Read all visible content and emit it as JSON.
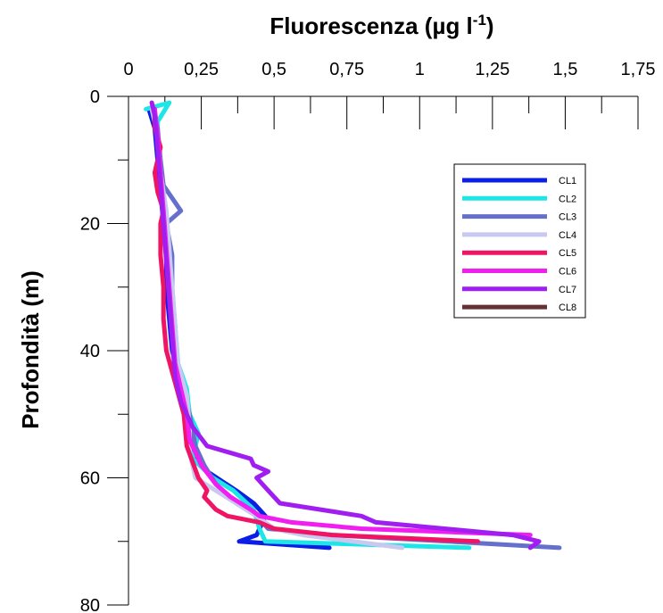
{
  "chart_data": {
    "type": "line",
    "title": "",
    "xlabel": "Fluorescenza (µg l",
    "xlabel_sup": "-1",
    "xlabel_suffix": ")",
    "ylabel": "Profondità (m)",
    "xlim": [
      0,
      1.75
    ],
    "ylim": [
      0,
      80
    ],
    "y_inverted": true,
    "x_axis_position": "top",
    "x_ticks": [
      "0",
      "0,25",
      "0,5",
      "0,75",
      "1",
      "1,25",
      "1,5",
      "1,75"
    ],
    "y_ticks": [
      "0",
      "20",
      "40",
      "60",
      "80"
    ],
    "grid": false,
    "legend_position": "top-right",
    "series": [
      {
        "name": "CL1",
        "color": "#0a1ee6",
        "points": [
          [
            0.07,
            2
          ],
          [
            0.09,
            5
          ],
          [
            0.1,
            10
          ],
          [
            0.11,
            15
          ],
          [
            0.12,
            20
          ],
          [
            0.13,
            25
          ],
          [
            0.13,
            30
          ],
          [
            0.14,
            35
          ],
          [
            0.15,
            40
          ],
          [
            0.18,
            45
          ],
          [
            0.2,
            48
          ],
          [
            0.2,
            50
          ],
          [
            0.21,
            53
          ],
          [
            0.22,
            56
          ],
          [
            0.27,
            59
          ],
          [
            0.37,
            62
          ],
          [
            0.43,
            64
          ],
          [
            0.47,
            66
          ],
          [
            0.45,
            68
          ],
          [
            0.44,
            69
          ],
          [
            0.38,
            70
          ],
          [
            0.69,
            71
          ]
        ]
      },
      {
        "name": "CL2",
        "color": "#1ee6e6",
        "points": [
          [
            0.06,
            2
          ],
          [
            0.14,
            1
          ],
          [
            0.1,
            4
          ],
          [
            0.1,
            8
          ],
          [
            0.11,
            12
          ],
          [
            0.12,
            18
          ],
          [
            0.13,
            24
          ],
          [
            0.15,
            30
          ],
          [
            0.16,
            36
          ],
          [
            0.17,
            42
          ],
          [
            0.2,
            46
          ],
          [
            0.21,
            50
          ],
          [
            0.24,
            53
          ],
          [
            0.22,
            57
          ],
          [
            0.29,
            60
          ],
          [
            0.36,
            62
          ],
          [
            0.43,
            65
          ],
          [
            0.45,
            68
          ],
          [
            0.47,
            70
          ],
          [
            1.17,
            71
          ]
        ]
      },
      {
        "name": "CL3",
        "color": "#6470cc",
        "points": [
          [
            0.08,
            2
          ],
          [
            0.1,
            5
          ],
          [
            0.11,
            10
          ],
          [
            0.12,
            14
          ],
          [
            0.18,
            18
          ],
          [
            0.13,
            20
          ],
          [
            0.15,
            25
          ],
          [
            0.15,
            30
          ],
          [
            0.15,
            35
          ],
          [
            0.16,
            40
          ],
          [
            0.18,
            45
          ],
          [
            0.21,
            50
          ],
          [
            0.23,
            55
          ],
          [
            0.26,
            58
          ],
          [
            0.3,
            61
          ],
          [
            0.37,
            64
          ],
          [
            0.44,
            66
          ],
          [
            0.48,
            68
          ],
          [
            0.7,
            69
          ],
          [
            1.1,
            70
          ],
          [
            1.48,
            71
          ]
        ]
      },
      {
        "name": "CL4",
        "color": "#c8c8f0",
        "points": [
          [
            0.08,
            2
          ],
          [
            0.1,
            6
          ],
          [
            0.11,
            12
          ],
          [
            0.13,
            18
          ],
          [
            0.14,
            24
          ],
          [
            0.15,
            30
          ],
          [
            0.16,
            36
          ],
          [
            0.17,
            42
          ],
          [
            0.2,
            47
          ],
          [
            0.21,
            52
          ],
          [
            0.21,
            56
          ],
          [
            0.23,
            60
          ],
          [
            0.3,
            62
          ],
          [
            0.37,
            64
          ],
          [
            0.44,
            66
          ],
          [
            0.5,
            68
          ],
          [
            0.6,
            69
          ],
          [
            0.94,
            71
          ]
        ]
      },
      {
        "name": "CL5",
        "color": "#f01464",
        "points": [
          [
            0.09,
            2
          ],
          [
            0.09,
            5
          ],
          [
            0.11,
            8
          ],
          [
            0.09,
            12
          ],
          [
            0.1,
            15
          ],
          [
            0.12,
            18
          ],
          [
            0.11,
            20
          ],
          [
            0.11,
            25
          ],
          [
            0.12,
            30
          ],
          [
            0.12,
            35
          ],
          [
            0.13,
            40
          ],
          [
            0.16,
            45
          ],
          [
            0.19,
            50
          ],
          [
            0.2,
            55
          ],
          [
            0.24,
            60
          ],
          [
            0.27,
            62
          ],
          [
            0.26,
            63
          ],
          [
            0.3,
            65
          ],
          [
            0.34,
            66
          ],
          [
            0.45,
            67
          ],
          [
            0.5,
            68
          ],
          [
            0.7,
            69
          ],
          [
            1.2,
            70
          ]
        ]
      },
      {
        "name": "CL6",
        "color": "#f01ef0",
        "points": [
          [
            0.09,
            2
          ],
          [
            0.1,
            6
          ],
          [
            0.11,
            12
          ],
          [
            0.12,
            18
          ],
          [
            0.13,
            24
          ],
          [
            0.14,
            30
          ],
          [
            0.15,
            36
          ],
          [
            0.16,
            42
          ],
          [
            0.18,
            46
          ],
          [
            0.2,
            50
          ],
          [
            0.21,
            54
          ],
          [
            0.25,
            58
          ],
          [
            0.3,
            61
          ],
          [
            0.35,
            63
          ],
          [
            0.42,
            65
          ],
          [
            0.45,
            66
          ],
          [
            0.56,
            67
          ],
          [
            0.8,
            68
          ],
          [
            1.38,
            69
          ]
        ]
      },
      {
        "name": "CL7",
        "color": "#a01ef0",
        "points": [
          [
            0.08,
            1
          ],
          [
            0.09,
            3
          ],
          [
            0.1,
            8
          ],
          [
            0.11,
            14
          ],
          [
            0.12,
            20
          ],
          [
            0.13,
            26
          ],
          [
            0.14,
            32
          ],
          [
            0.15,
            38
          ],
          [
            0.16,
            44
          ],
          [
            0.18,
            48
          ],
          [
            0.22,
            52
          ],
          [
            0.27,
            55
          ],
          [
            0.42,
            57
          ],
          [
            0.43,
            58
          ],
          [
            0.48,
            59
          ],
          [
            0.44,
            60
          ],
          [
            0.48,
            62
          ],
          [
            0.52,
            64
          ],
          [
            0.8,
            66
          ],
          [
            0.85,
            67
          ],
          [
            1.32,
            69
          ],
          [
            1.41,
            70
          ],
          [
            1.38,
            71
          ]
        ]
      },
      {
        "name": "CL8",
        "color": "#643232",
        "points": []
      }
    ]
  }
}
